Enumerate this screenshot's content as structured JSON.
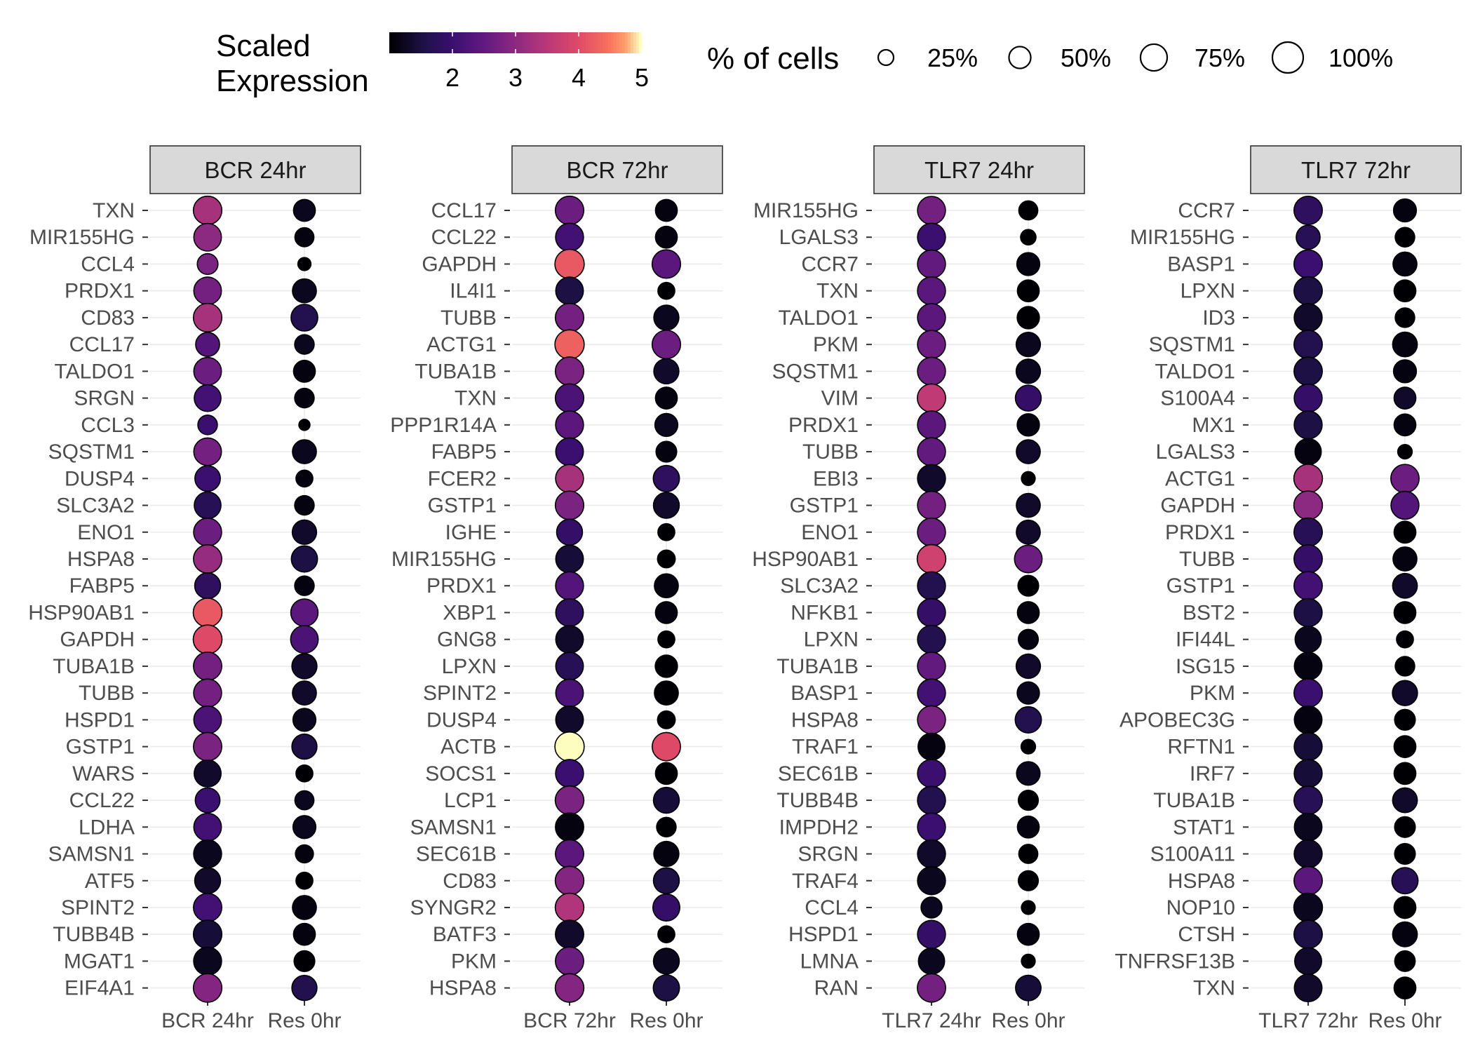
{
  "chart_data": {
    "type": "dotplot",
    "color_legend": {
      "title_lines": [
        "Scaled",
        "Expression"
      ],
      "ticks": [
        2,
        3,
        4,
        5
      ],
      "range": [
        1,
        5
      ],
      "palette": "magma"
    },
    "size_legend": {
      "title": "% of cells",
      "items": [
        {
          "value": 25,
          "label": "25%"
        },
        {
          "value": 50,
          "label": "50%"
        },
        {
          "value": 75,
          "label": "75%"
        },
        {
          "value": 100,
          "label": "100%"
        }
      ]
    },
    "panels": [
      {
        "title": "BCR 24hr",
        "x": [
          "BCR 24hr",
          "Res 0hr"
        ],
        "genes": [
          "TXN",
          "MIR155HG",
          "CCL4",
          "PRDX1",
          "CD83",
          "CCL17",
          "TALDO1",
          "SRGN",
          "CCL3",
          "SQSTM1",
          "DUSP4",
          "SLC3A2",
          "ENO1",
          "HSPA8",
          "FABP5",
          "HSP90AB1",
          "GAPDH",
          "TUBA1B",
          "TUBB",
          "HSPD1",
          "GSTP1",
          "WARS",
          "CCL22",
          "LDHA",
          "SAMSN1",
          "ATF5",
          "SPINT2",
          "TUBB4B",
          "MGAT1",
          "EIF4A1"
        ],
        "expr": [
          [
            3.3,
            1.2
          ],
          [
            3.0,
            1.1
          ],
          [
            2.8,
            1.0
          ],
          [
            2.7,
            1.2
          ],
          [
            3.3,
            1.6
          ],
          [
            2.3,
            1.2
          ],
          [
            2.6,
            1.1
          ],
          [
            2.1,
            1.1
          ],
          [
            2.0,
            1.0
          ],
          [
            2.7,
            1.2
          ],
          [
            2.0,
            1.1
          ],
          [
            1.7,
            1.1
          ],
          [
            2.6,
            1.3
          ],
          [
            3.1,
            1.5
          ],
          [
            1.8,
            1.1
          ],
          [
            4.2,
            2.4
          ],
          [
            4.0,
            2.2
          ],
          [
            2.7,
            1.3
          ],
          [
            2.7,
            1.3
          ],
          [
            2.2,
            1.2
          ],
          [
            2.8,
            1.5
          ],
          [
            1.3,
            1.0
          ],
          [
            2.0,
            1.2
          ],
          [
            2.1,
            1.2
          ],
          [
            1.2,
            1.1
          ],
          [
            1.3,
            1.0
          ],
          [
            2.1,
            1.1
          ],
          [
            1.4,
            1.1
          ],
          [
            1.2,
            1.0
          ],
          [
            2.9,
            1.6
          ]
        ],
        "pct": [
          [
            85,
            50
          ],
          [
            80,
            38
          ],
          [
            45,
            18
          ],
          [
            80,
            60
          ],
          [
            85,
            75
          ],
          [
            60,
            40
          ],
          [
            80,
            50
          ],
          [
            75,
            40
          ],
          [
            40,
            13
          ],
          [
            80,
            60
          ],
          [
            68,
            30
          ],
          [
            75,
            40
          ],
          [
            82,
            62
          ],
          [
            84,
            72
          ],
          [
            70,
            40
          ],
          [
            87,
            78
          ],
          [
            87,
            80
          ],
          [
            84,
            66
          ],
          [
            82,
            60
          ],
          [
            80,
            55
          ],
          [
            84,
            66
          ],
          [
            76,
            30
          ],
          [
            64,
            38
          ],
          [
            80,
            55
          ],
          [
            82,
            34
          ],
          [
            70,
            30
          ],
          [
            84,
            60
          ],
          [
            85,
            50
          ],
          [
            82,
            45
          ],
          [
            85,
            66
          ]
        ]
      },
      {
        "title": "BCR 72hr",
        "x": [
          "BCR 72hr",
          "Res 0hr"
        ],
        "genes": [
          "CCL17",
          "CCL22",
          "GAPDH",
          "IL4I1",
          "TUBB",
          "ACTG1",
          "TUBA1B",
          "TXN",
          "PPP1R14A",
          "FABP5",
          "FCER2",
          "GSTP1",
          "IGHE",
          "MIR155HG",
          "PRDX1",
          "XBP1",
          "GNG8",
          "LPXN",
          "SPINT2",
          "DUSP4",
          "ACTB",
          "SOCS1",
          "LCP1",
          "SAMSN1",
          "SEC61B",
          "CD83",
          "SYNGR2",
          "BATF3",
          "PKM",
          "HSPA8"
        ],
        "expr": [
          [
            2.6,
            1.1
          ],
          [
            2.1,
            1.1
          ],
          [
            4.2,
            2.4
          ],
          [
            1.5,
            1.0
          ],
          [
            2.7,
            1.2
          ],
          [
            4.3,
            2.6
          ],
          [
            2.8,
            1.3
          ],
          [
            2.2,
            1.1
          ],
          [
            2.4,
            1.2
          ],
          [
            2.0,
            1.1
          ],
          [
            3.3,
            1.8
          ],
          [
            2.8,
            1.3
          ],
          [
            1.9,
            1.0
          ],
          [
            1.4,
            1.0
          ],
          [
            2.3,
            1.1
          ],
          [
            1.8,
            1.1
          ],
          [
            1.3,
            1.0
          ],
          [
            1.7,
            1.0
          ],
          [
            2.2,
            1.0
          ],
          [
            1.3,
            1.0
          ],
          [
            5.0,
            4.0
          ],
          [
            2.0,
            1.0
          ],
          [
            2.8,
            1.4
          ],
          [
            1.1,
            1.0
          ],
          [
            2.4,
            1.1
          ],
          [
            2.9,
            1.5
          ],
          [
            3.4,
            1.9
          ],
          [
            1.3,
            1.0
          ],
          [
            2.6,
            1.2
          ],
          [
            2.9,
            1.5
          ]
        ],
        "pct": [
          [
            85,
            50
          ],
          [
            82,
            50
          ],
          [
            90,
            85
          ],
          [
            80,
            30
          ],
          [
            85,
            66
          ],
          [
            90,
            85
          ],
          [
            85,
            66
          ],
          [
            85,
            50
          ],
          [
            82,
            55
          ],
          [
            80,
            45
          ],
          [
            82,
            72
          ],
          [
            85,
            70
          ],
          [
            70,
            30
          ],
          [
            80,
            33
          ],
          [
            82,
            60
          ],
          [
            80,
            50
          ],
          [
            80,
            30
          ],
          [
            80,
            52
          ],
          [
            80,
            60
          ],
          [
            80,
            33
          ],
          [
            90,
            84
          ],
          [
            82,
            50
          ],
          [
            86,
            70
          ],
          [
            84,
            40
          ],
          [
            84,
            66
          ],
          [
            86,
            70
          ],
          [
            86,
            76
          ],
          [
            84,
            30
          ],
          [
            84,
            70
          ],
          [
            86,
            72
          ]
        ]
      },
      {
        "title": "TLR7 24hr",
        "x": [
          "TLR7 24hr",
          "Res 0hr"
        ],
        "genes": [
          "MIR155HG",
          "LGALS3",
          "CCR7",
          "TXN",
          "TALDO1",
          "PKM",
          "SQSTM1",
          "VIM",
          "PRDX1",
          "TUBB",
          "EBI3",
          "GSTP1",
          "ENO1",
          "HSP90AB1",
          "SLC3A2",
          "NFKB1",
          "LPXN",
          "TUBA1B",
          "BASP1",
          "HSPA8",
          "TRAF1",
          "SEC61B",
          "TUBB4B",
          "IMPDH2",
          "SRGN",
          "TRAF4",
          "CCL4",
          "HSPD1",
          "LMNA",
          "RAN"
        ],
        "expr": [
          [
            2.7,
            1.0
          ],
          [
            2.0,
            1.0
          ],
          [
            2.5,
            1.1
          ],
          [
            2.4,
            1.0
          ],
          [
            2.4,
            1.0
          ],
          [
            2.6,
            1.2
          ],
          [
            2.6,
            1.2
          ],
          [
            3.6,
            1.9
          ],
          [
            2.4,
            1.1
          ],
          [
            2.5,
            1.3
          ],
          [
            1.3,
            1.0
          ],
          [
            2.7,
            1.3
          ],
          [
            2.6,
            1.3
          ],
          [
            3.8,
            2.6
          ],
          [
            1.6,
            1.0
          ],
          [
            1.9,
            1.1
          ],
          [
            1.6,
            1.1
          ],
          [
            2.5,
            1.3
          ],
          [
            2.1,
            1.2
          ],
          [
            2.8,
            1.6
          ],
          [
            1.1,
            1.0
          ],
          [
            2.0,
            1.2
          ],
          [
            1.6,
            1.0
          ],
          [
            2.0,
            1.1
          ],
          [
            1.3,
            1.0
          ],
          [
            1.2,
            1.0
          ],
          [
            1.2,
            1.0
          ],
          [
            1.9,
            1.1
          ],
          [
            1.2,
            1.0
          ],
          [
            2.7,
            1.4
          ]
        ],
        "pct": [
          [
            82,
            38
          ],
          [
            82,
            25
          ],
          [
            82,
            55
          ],
          [
            82,
            50
          ],
          [
            82,
            52
          ],
          [
            82,
            62
          ],
          [
            82,
            62
          ],
          [
            84,
            70
          ],
          [
            82,
            52
          ],
          [
            82,
            60
          ],
          [
            82,
            20
          ],
          [
            82,
            60
          ],
          [
            82,
            60
          ],
          [
            86,
            80
          ],
          [
            82,
            45
          ],
          [
            82,
            50
          ],
          [
            82,
            42
          ],
          [
            82,
            62
          ],
          [
            82,
            52
          ],
          [
            82,
            72
          ],
          [
            76,
            22
          ],
          [
            82,
            58
          ],
          [
            82,
            42
          ],
          [
            82,
            50
          ],
          [
            82,
            38
          ],
          [
            82,
            42
          ],
          [
            46,
            20
          ],
          [
            82,
            50
          ],
          [
            72,
            20
          ],
          [
            84,
            68
          ]
        ]
      },
      {
        "title": "TLR7 72hr",
        "x": [
          "TLR7 72hr",
          "Res 0hr"
        ],
        "genes": [
          "CCR7",
          "MIR155HG",
          "BASP1",
          "LPXN",
          "ID3",
          "SQSTM1",
          "TALDO1",
          "S100A4",
          "MX1",
          "LGALS3",
          "ACTG1",
          "GAPDH",
          "PRDX1",
          "TUBB",
          "GSTP1",
          "BST2",
          "IFI44L",
          "ISG15",
          "PKM",
          "APOBEC3G",
          "RFTN1",
          "IRF7",
          "TUBA1B",
          "STAT1",
          "S100A11",
          "HSPA8",
          "NOP10",
          "CTSH",
          "TNFRSF13B",
          "TXN"
        ],
        "expr": [
          [
            1.8,
            1.1
          ],
          [
            1.7,
            1.0
          ],
          [
            2.0,
            1.1
          ],
          [
            1.5,
            1.0
          ],
          [
            1.3,
            1.0
          ],
          [
            1.6,
            1.1
          ],
          [
            1.5,
            1.1
          ],
          [
            1.9,
            1.3
          ],
          [
            1.5,
            1.1
          ],
          [
            1.1,
            1.0
          ],
          [
            3.3,
            2.6
          ],
          [
            3.0,
            2.3
          ],
          [
            1.7,
            1.0
          ],
          [
            1.9,
            1.1
          ],
          [
            2.1,
            1.3
          ],
          [
            1.5,
            1.0
          ],
          [
            1.2,
            1.0
          ],
          [
            1.1,
            1.0
          ],
          [
            2.0,
            1.3
          ],
          [
            1.1,
            1.0
          ],
          [
            1.4,
            1.0
          ],
          [
            1.4,
            1.0
          ],
          [
            1.7,
            1.3
          ],
          [
            1.2,
            1.0
          ],
          [
            1.3,
            1.0
          ],
          [
            2.4,
            1.7
          ],
          [
            1.2,
            1.0
          ],
          [
            1.5,
            1.1
          ],
          [
            1.3,
            1.0
          ],
          [
            1.3,
            1.0
          ]
        ],
        "pct": [
          [
            84,
            55
          ],
          [
            60,
            40
          ],
          [
            84,
            60
          ],
          [
            84,
            50
          ],
          [
            82,
            40
          ],
          [
            84,
            64
          ],
          [
            84,
            55
          ],
          [
            82,
            50
          ],
          [
            82,
            50
          ],
          [
            72,
            22
          ],
          [
            86,
            84
          ],
          [
            86,
            82
          ],
          [
            84,
            50
          ],
          [
            84,
            60
          ],
          [
            84,
            64
          ],
          [
            82,
            50
          ],
          [
            72,
            30
          ],
          [
            80,
            40
          ],
          [
            84,
            66
          ],
          [
            80,
            45
          ],
          [
            82,
            50
          ],
          [
            82,
            50
          ],
          [
            84,
            64
          ],
          [
            80,
            45
          ],
          [
            82,
            45
          ],
          [
            84,
            72
          ],
          [
            86,
            50
          ],
          [
            84,
            64
          ],
          [
            76,
            44
          ],
          [
            80,
            50
          ]
        ]
      }
    ]
  }
}
